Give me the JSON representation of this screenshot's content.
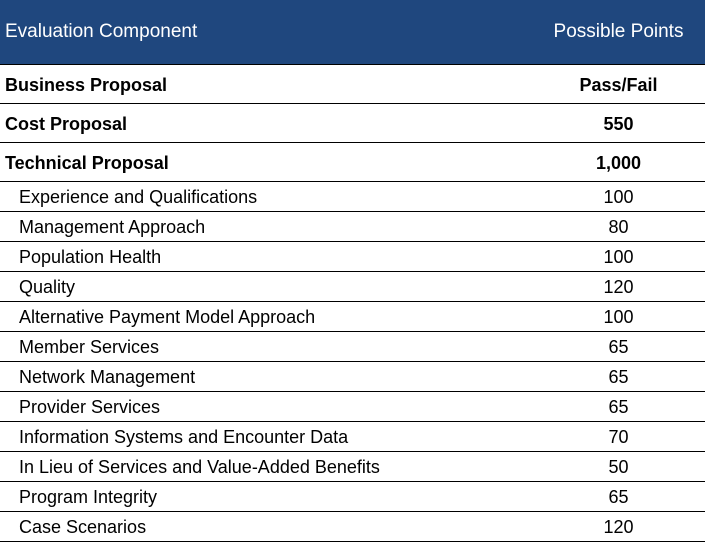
{
  "header": {
    "component_label": "Evaluation Component",
    "points_label": "Possible Points"
  },
  "major_rows": [
    {
      "component": "Business Proposal",
      "points": "Pass/Fail"
    },
    {
      "component": "Cost Proposal",
      "points": "550"
    },
    {
      "component": "Technical Proposal",
      "points": "1,000"
    }
  ],
  "sub_rows": [
    {
      "component": "Experience and Qualifications",
      "points": "100"
    },
    {
      "component": "Management Approach",
      "points": "80"
    },
    {
      "component": "Population Health",
      "points": "100"
    },
    {
      "component": "Quality",
      "points": "120"
    },
    {
      "component": "Alternative Payment Model Approach",
      "points": "100"
    },
    {
      "component": "Member Services",
      "points": "65"
    },
    {
      "component": "Network Management",
      "points": "65"
    },
    {
      "component": "Provider Services",
      "points": "65"
    },
    {
      "component": "Information Systems and Encounter Data",
      "points": "70"
    },
    {
      "component": "In Lieu of Services and Value-Added Benefits",
      "points": "50"
    },
    {
      "component": "Program Integrity",
      "points": "65"
    },
    {
      "component": "Case Scenarios",
      "points": "120"
    }
  ]
}
